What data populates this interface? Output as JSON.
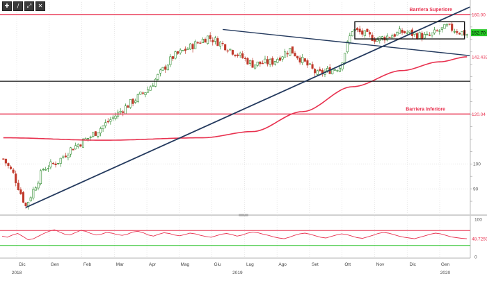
{
  "toolbar": {
    "buttons": [
      {
        "name": "crosshair-icon",
        "glyph": "✚"
      },
      {
        "name": "draw-line-icon",
        "glyph": "∕"
      },
      {
        "name": "zoom-icon",
        "glyph": "⤢"
      },
      {
        "name": "close-icon",
        "glyph": "✕"
      }
    ]
  },
  "colors": {
    "up": "#2e8b2e",
    "down": "#c0392b",
    "barrier": "#e8314f",
    "ma": "#e8314f",
    "trend": "#243a5e",
    "support": "#111111",
    "rsi": "#e8314f",
    "rsi_band_high": "#e8314f",
    "rsi_band_low": "#22c122",
    "last_price_bg": "#27c827",
    "grid": "#d8d8d8"
  },
  "chart_data": [
    {
      "type": "candlestick",
      "title": "",
      "ylim": [
        80,
        165
      ],
      "yticks": [
        90,
        100
      ],
      "x_months": [
        "Dic",
        "Gen",
        "Feb",
        "Mar",
        "Apr",
        "Mag",
        "Giu",
        "Lug",
        "Ago",
        "Set",
        "Ott",
        "Nov",
        "Dic",
        "Gen"
      ],
      "x_years": [
        "2018",
        "2019",
        "2020"
      ],
      "last_price_label": "152.70",
      "ma_value_label": "142.4323",
      "annotations": {
        "upper_barrier": {
          "text": "Barriera Superiore",
          "value": 160.0,
          "value_label": "160.00"
        },
        "lower_barrier": {
          "text": "Barriera Inferiore",
          "value": 120.04,
          "value_label": "120.04"
        },
        "support_line": {
          "value": 133.2
        }
      },
      "anchors": [
        [
          0,
          102
        ],
        [
          4,
          96
        ],
        [
          9,
          83
        ],
        [
          16,
          98
        ],
        [
          22,
          101
        ],
        [
          27,
          106
        ],
        [
          35,
          111
        ],
        [
          48,
          122
        ],
        [
          58,
          130
        ],
        [
          68,
          143
        ],
        [
          82,
          151
        ],
        [
          88,
          148
        ],
        [
          100,
          140
        ],
        [
          108,
          141
        ],
        [
          115,
          146
        ],
        [
          126,
          136
        ],
        [
          135,
          139
        ],
        [
          140,
          154
        ],
        [
          150,
          150
        ],
        [
          160,
          153
        ],
        [
          170,
          151
        ],
        [
          178,
          155
        ],
        [
          186,
          152
        ]
      ],
      "ma_curve": [
        [
          0,
          110.5
        ],
        [
          40,
          109.5
        ],
        [
          80,
          110.5
        ],
        [
          100,
          113
        ],
        [
          120,
          121
        ],
        [
          140,
          131
        ],
        [
          160,
          137.5
        ],
        [
          175,
          141
        ],
        [
          186,
          143
        ]
      ],
      "channel_box": {
        "x": [
          141,
          185
        ],
        "y": [
          150.2,
          157.1
        ]
      }
    },
    {
      "type": "line",
      "name": "rsi",
      "ylim": [
        0,
        100
      ],
      "yticks": [
        100,
        0
      ],
      "bands": [
        70,
        30
      ],
      "last_value_label": "48.7259",
      "values": [
        55,
        52,
        58,
        62,
        54,
        45,
        48,
        55,
        62,
        68,
        72,
        66,
        60,
        58,
        64,
        70,
        68,
        62,
        58,
        60,
        65,
        63,
        59,
        57,
        60,
        66,
        68,
        64,
        58,
        55,
        60,
        64,
        62,
        58,
        56,
        59,
        63,
        61,
        57,
        54,
        52,
        56,
        60,
        62,
        59,
        55,
        58,
        63,
        66,
        64,
        60,
        57,
        53,
        50,
        48,
        52,
        57,
        61,
        63,
        60,
        56,
        52,
        50,
        54,
        58,
        61,
        59,
        55,
        51,
        49,
        53,
        57,
        62,
        65,
        63,
        59,
        55,
        52,
        50,
        48,
        52,
        56,
        60,
        63,
        61,
        57,
        53,
        51,
        49,
        48
      ]
    }
  ]
}
